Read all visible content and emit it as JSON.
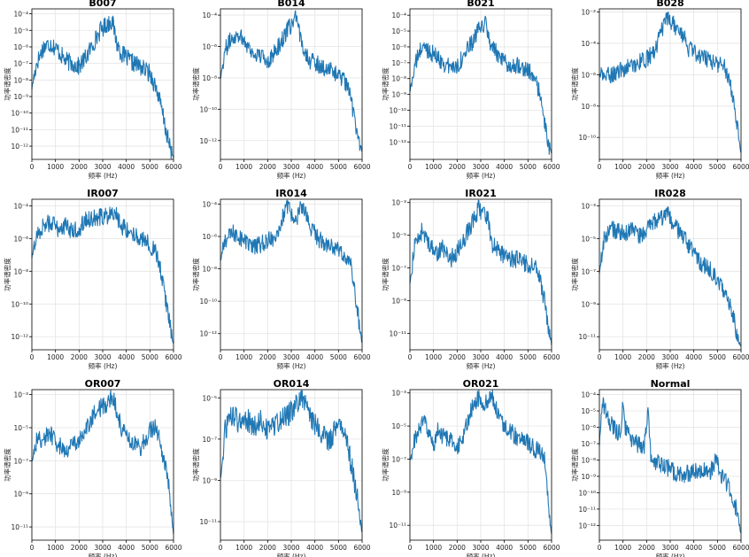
{
  "figure": {
    "xlabel": "频率 (Hz)",
    "ylabel": "功率谱密度",
    "line_color": "#1f77b4"
  },
  "chart_data": [
    {
      "type": "line",
      "title": "B007",
      "xlabel": "频率 (Hz)",
      "ylabel": "功率谱密度",
      "xlim": [
        0,
        6000
      ],
      "y_scale": "log",
      "ylim_exp": [
        -12.8,
        -3.7
      ],
      "x_ticks": [
        0,
        1000,
        2000,
        3000,
        4000,
        5000,
        6000
      ],
      "y_tick_labels": [
        "10⁻⁴",
        "10⁻⁵",
        "10⁻⁶",
        "10⁻⁷",
        "10⁻⁸",
        "10⁻⁹",
        "10⁻¹⁰",
        "10⁻¹¹",
        "10⁻¹²"
      ],
      "y_tick_exps": [
        -4,
        -5,
        -6,
        -7,
        -8,
        -9,
        -10,
        -11,
        -12
      ],
      "grid": true,
      "x": [
        0,
        200,
        500,
        800,
        1100,
        1400,
        1700,
        2000,
        2300,
        2600,
        2900,
        3200,
        3400,
        3600,
        3800,
        4200,
        4600,
        5000,
        5300,
        5500,
        5700,
        5900,
        6000
      ],
      "log10_values": [
        -8.5,
        -7.0,
        -6.0,
        -5.8,
        -6.2,
        -6.8,
        -7.0,
        -7.2,
        -6.6,
        -5.8,
        -5.0,
        -4.6,
        -4.4,
        -5.8,
        -6.4,
        -6.9,
        -7.2,
        -7.6,
        -8.6,
        -9.8,
        -11.2,
        -12.4,
        -12.6
      ]
    },
    {
      "type": "line",
      "title": "B014",
      "xlabel": "频率 (Hz)",
      "ylabel": "功率谱密度",
      "xlim": [
        0,
        6000
      ],
      "y_scale": "log",
      "ylim_exp": [
        -13.2,
        -3.6
      ],
      "x_ticks": [
        0,
        1000,
        2000,
        3000,
        4000,
        5000,
        6000
      ],
      "y_tick_labels": [
        "10⁻⁴",
        "10⁻⁶",
        "10⁻⁸",
        "10⁻¹⁰",
        "10⁻¹²"
      ],
      "y_tick_exps": [
        -4,
        -6,
        -8,
        -10,
        -12
      ],
      "grid": true,
      "x": [
        0,
        200,
        500,
        800,
        1100,
        1400,
        1700,
        2000,
        2300,
        2600,
        2900,
        3200,
        3400,
        3600,
        3800,
        4200,
        4600,
        5000,
        5300,
        5500,
        5700,
        5900,
        6000
      ],
      "log10_values": [
        -8.0,
        -6.2,
        -5.4,
        -5.2,
        -5.8,
        -6.5,
        -6.6,
        -6.9,
        -6.4,
        -5.6,
        -4.8,
        -4.2,
        -5.6,
        -6.3,
        -6.9,
        -7.2,
        -7.5,
        -7.8,
        -8.3,
        -9.2,
        -10.8,
        -12.2,
        -12.6
      ]
    },
    {
      "type": "line",
      "title": "B021",
      "xlabel": "频率 (Hz)",
      "ylabel": "功率谱密度",
      "xlim": [
        0,
        6000
      ],
      "y_scale": "log",
      "ylim_exp": [
        -13.1,
        -3.6
      ],
      "x_ticks": [
        0,
        1000,
        2000,
        3000,
        4000,
        5000,
        6000
      ],
      "y_tick_labels": [
        "10⁻⁴",
        "10⁻⁵",
        "10⁻⁶",
        "10⁻⁷",
        "10⁻⁸",
        "10⁻⁹",
        "10⁻¹⁰",
        "10⁻¹¹",
        "10⁻¹²"
      ],
      "y_tick_exps": [
        -4,
        -5,
        -6,
        -7,
        -8,
        -9,
        -10,
        -11,
        -12
      ],
      "grid": true,
      "x": [
        0,
        200,
        500,
        800,
        1100,
        1400,
        1700,
        2000,
        2300,
        2600,
        2900,
        3200,
        3400,
        3600,
        3800,
        4200,
        4600,
        5000,
        5300,
        5500,
        5700,
        5900,
        6000
      ],
      "log10_values": [
        -8.8,
        -7.2,
        -6.0,
        -6.2,
        -6.6,
        -7.0,
        -7.3,
        -7.2,
        -6.5,
        -5.8,
        -5.0,
        -4.5,
        -5.8,
        -6.2,
        -6.8,
        -7.2,
        -7.1,
        -7.5,
        -8.0,
        -9.0,
        -10.8,
        -12.4,
        -12.7
      ]
    },
    {
      "type": "line",
      "title": "B028",
      "xlabel": "频率 (Hz)",
      "ylabel": "功率谱密度",
      "xlim": [
        0,
        6000
      ],
      "y_scale": "log",
      "ylim_exp": [
        -11.4,
        -1.8
      ],
      "x_ticks": [
        0,
        1000,
        2000,
        3000,
        4000,
        5000,
        6000
      ],
      "y_tick_labels": [
        "10⁻²",
        "10⁻⁴",
        "10⁻⁶",
        "10⁻⁸",
        "10⁻¹⁰"
      ],
      "y_tick_exps": [
        -2,
        -4,
        -6,
        -8,
        -10
      ],
      "grid": true,
      "x": [
        0,
        200,
        500,
        800,
        1100,
        1400,
        1700,
        2000,
        2300,
        2600,
        2800,
        3000,
        3200,
        3400,
        3600,
        3800,
        4200,
        4600,
        5000,
        5300,
        5500,
        5700,
        5900,
        6000
      ],
      "log10_values": [
        -6.0,
        -6.1,
        -6.0,
        -5.8,
        -5.6,
        -5.4,
        -5.2,
        -5.0,
        -4.6,
        -3.4,
        -2.6,
        -2.5,
        -2.9,
        -3.3,
        -3.6,
        -4.4,
        -4.7,
        -5.0,
        -5.3,
        -5.5,
        -6.2,
        -7.8,
        -9.8,
        -11.0
      ]
    },
    {
      "type": "line",
      "title": "IR007",
      "xlabel": "频率 (Hz)",
      "ylabel": "功率谱密度",
      "xlim": [
        0,
        6000
      ],
      "y_scale": "log",
      "ylim_exp": [
        -12.8,
        -3.6
      ],
      "x_ticks": [
        0,
        1000,
        2000,
        3000,
        4000,
        5000,
        6000
      ],
      "y_tick_labels": [
        "10⁻⁴",
        "10⁻⁶",
        "10⁻⁸",
        "10⁻¹⁰",
        "10⁻¹²"
      ],
      "y_tick_exps": [
        -4,
        -6,
        -8,
        -10,
        -12
      ],
      "grid": true,
      "x": [
        0,
        200,
        500,
        800,
        1100,
        1400,
        1700,
        2000,
        2300,
        2600,
        2900,
        3200,
        3400,
        3600,
        3800,
        4200,
        4600,
        5000,
        5300,
        5500,
        5700,
        5900,
        6000
      ],
      "log10_values": [
        -7.2,
        -5.8,
        -5.2,
        -5.0,
        -5.4,
        -5.2,
        -5.6,
        -5.4,
        -4.8,
        -4.8,
        -4.7,
        -4.6,
        -4.2,
        -4.6,
        -5.2,
        -5.6,
        -6.0,
        -6.4,
        -7.0,
        -8.2,
        -10.0,
        -11.8,
        -12.5
      ]
    },
    {
      "type": "line",
      "title": "IR014",
      "xlabel": "频率 (Hz)",
      "ylabel": "功率谱密度",
      "xlim": [
        0,
        6000
      ],
      "y_scale": "log",
      "ylim_exp": [
        -13.0,
        -3.7
      ],
      "x_ticks": [
        0,
        1000,
        2000,
        3000,
        4000,
        5000,
        6000
      ],
      "y_tick_labels": [
        "10⁻⁴",
        "10⁻⁶",
        "10⁻⁸",
        "10⁻¹⁰",
        "10⁻¹²"
      ],
      "y_tick_exps": [
        -4,
        -6,
        -8,
        -10,
        -12
      ],
      "grid": true,
      "x": [
        0,
        200,
        500,
        800,
        1100,
        1400,
        1700,
        2000,
        2300,
        2600,
        2800,
        3000,
        3200,
        3400,
        3600,
        3800,
        4200,
        4600,
        5000,
        5300,
        5500,
        5700,
        5900,
        6000
      ],
      "log10_values": [
        -7.5,
        -6.2,
        -5.8,
        -6.0,
        -6.4,
        -6.7,
        -6.5,
        -6.3,
        -6.0,
        -5.0,
        -4.2,
        -4.6,
        -4.9,
        -4.3,
        -4.5,
        -5.5,
        -6.2,
        -6.5,
        -6.9,
        -7.2,
        -7.6,
        -9.5,
        -11.6,
        -12.6
      ]
    },
    {
      "type": "line",
      "title": "IR021",
      "xlabel": "频率 (Hz)",
      "ylabel": "功率谱密度",
      "xlim": [
        0,
        6000
      ],
      "y_scale": "log",
      "ylim_exp": [
        -12.0,
        -2.8
      ],
      "x_ticks": [
        0,
        1000,
        2000,
        3000,
        4000,
        5000,
        6000
      ],
      "y_tick_labels": [
        "10⁻³",
        "10⁻⁵",
        "10⁻⁷",
        "10⁻⁹",
        "10⁻¹¹"
      ],
      "y_tick_exps": [
        -3,
        -5,
        -7,
        -9,
        -11
      ],
      "grid": true,
      "x": [
        0,
        200,
        500,
        800,
        1100,
        1400,
        1700,
        2000,
        2300,
        2600,
        2900,
        3100,
        3300,
        3500,
        3800,
        4200,
        4600,
        5000,
        5300,
        5500,
        5700,
        5900,
        6000
      ],
      "log10_values": [
        -8.0,
        -5.6,
        -4.8,
        -5.4,
        -6.2,
        -5.8,
        -6.5,
        -6.0,
        -5.2,
        -4.4,
        -3.4,
        -3.6,
        -4.0,
        -5.6,
        -6.0,
        -6.4,
        -6.5,
        -6.8,
        -7.0,
        -7.6,
        -9.0,
        -11.0,
        -11.6
      ]
    },
    {
      "type": "line",
      "title": "IR028",
      "xlabel": "频率 (Hz)",
      "ylabel": "功率谱密度",
      "xlim": [
        0,
        6000
      ],
      "y_scale": "log",
      "ylim_exp": [
        -11.8,
        -2.6
      ],
      "x_ticks": [
        0,
        1000,
        2000,
        3000,
        4000,
        5000,
        6000
      ],
      "y_tick_labels": [
        "10⁻³",
        "10⁻⁵",
        "10⁻⁷",
        "10⁻⁹",
        "10⁻¹¹"
      ],
      "y_tick_exps": [
        -3,
        -5,
        -7,
        -9,
        -11
      ],
      "grid": true,
      "x": [
        0,
        200,
        500,
        800,
        1100,
        1400,
        1700,
        2000,
        2300,
        2600,
        2900,
        3200,
        3400,
        3600,
        3800,
        4200,
        4600,
        5000,
        5300,
        5500,
        5700,
        5900,
        6000
      ],
      "log10_values": [
        -7.2,
        -5.0,
        -4.4,
        -4.6,
        -4.8,
        -4.2,
        -4.9,
        -4.5,
        -4.0,
        -3.8,
        -3.6,
        -4.3,
        -4.6,
        -5.0,
        -5.5,
        -6.4,
        -6.8,
        -7.4,
        -8.2,
        -9.0,
        -10.0,
        -11.2,
        -11.5
      ]
    },
    {
      "type": "line",
      "title": "OR007",
      "xlabel": "频率 (Hz)",
      "ylabel": "功率谱密度",
      "xlim": [
        0,
        6000
      ],
      "y_scale": "log",
      "ylim_exp": [
        -11.8,
        -2.7
      ],
      "x_ticks": [
        0,
        1000,
        2000,
        3000,
        4000,
        5000,
        6000
      ],
      "y_tick_labels": [
        "10⁻³",
        "10⁻⁵",
        "10⁻⁷",
        "10⁻⁹",
        "10⁻¹¹"
      ],
      "y_tick_exps": [
        -3,
        -5,
        -7,
        -9,
        -11
      ],
      "grid": true,
      "x": [
        0,
        200,
        500,
        800,
        1100,
        1400,
        1700,
        2000,
        2300,
        2600,
        2900,
        3200,
        3400,
        3600,
        3800,
        4200,
        4600,
        5000,
        5200,
        5400,
        5600,
        5800,
        5900,
        6000
      ],
      "log10_values": [
        -7.0,
        -5.8,
        -5.6,
        -5.4,
        -6.0,
        -6.4,
        -6.0,
        -5.8,
        -5.2,
        -4.2,
        -3.8,
        -3.5,
        -3.0,
        -4.0,
        -5.0,
        -5.8,
        -6.2,
        -5.2,
        -5.0,
        -5.6,
        -7.0,
        -8.6,
        -10.2,
        -11.4
      ]
    },
    {
      "type": "line",
      "title": "OR014",
      "xlabel": "频率 (Hz)",
      "ylabel": "功率谱密度",
      "xlim": [
        0,
        6000
      ],
      "y_scale": "log",
      "ylim_exp": [
        -11.9,
        -4.6
      ],
      "x_ticks": [
        0,
        1000,
        2000,
        3000,
        4000,
        5000,
        6000
      ],
      "y_tick_labels": [
        "10⁻⁵",
        "10⁻⁷",
        "10⁻⁹",
        "10⁻¹¹"
      ],
      "y_tick_exps": [
        -5,
        -7,
        -9,
        -11
      ],
      "grid": true,
      "x": [
        0,
        200,
        500,
        800,
        1100,
        1400,
        1700,
        2000,
        2300,
        2600,
        2900,
        3200,
        3400,
        3600,
        3800,
        4200,
        4600,
        5000,
        5200,
        5400,
        5600,
        5800,
        5900,
        6000
      ],
      "log10_values": [
        -9.0,
        -6.6,
        -5.8,
        -6.2,
        -6.0,
        -6.4,
        -6.1,
        -6.6,
        -6.4,
        -6.0,
        -5.8,
        -5.3,
        -4.9,
        -5.4,
        -5.9,
        -6.6,
        -7.1,
        -6.2,
        -6.4,
        -7.4,
        -8.6,
        -9.8,
        -10.8,
        -11.5
      ]
    },
    {
      "type": "line",
      "title": "OR021",
      "xlabel": "频率 (Hz)",
      "ylabel": "功率谱密度",
      "xlim": [
        0,
        6000
      ],
      "y_scale": "log",
      "ylim_exp": [
        -11.9,
        -2.8
      ],
      "x_ticks": [
        0,
        1000,
        2000,
        3000,
        4000,
        5000,
        6000
      ],
      "y_tick_labels": [
        "10⁻³",
        "10⁻⁵",
        "10⁻⁷",
        "10⁻⁹",
        "10⁻¹¹"
      ],
      "y_tick_exps": [
        -3,
        -5,
        -7,
        -9,
        -11
      ],
      "grid": true,
      "x": [
        0,
        200,
        400,
        600,
        800,
        1000,
        1200,
        1500,
        1800,
        2100,
        2400,
        2700,
        2900,
        3100,
        3300,
        3500,
        3800,
        4200,
        4600,
        5000,
        5300,
        5500,
        5700,
        5900,
        6000
      ],
      "log10_values": [
        -7.2,
        -5.8,
        -5.2,
        -4.6,
        -5.6,
        -6.2,
        -5.2,
        -5.8,
        -6.0,
        -6.2,
        -5.0,
        -3.6,
        -3.3,
        -3.8,
        -3.5,
        -3.2,
        -4.6,
        -5.2,
        -5.8,
        -6.0,
        -6.4,
        -6.6,
        -6.8,
        -10.5,
        -11.6
      ]
    },
    {
      "type": "line",
      "title": "Normal",
      "xlabel": "频率 (Hz)",
      "ylabel": "功率谱密度",
      "xlim": [
        0,
        6000
      ],
      "y_scale": "log",
      "ylim_exp": [
        -12.9,
        -3.7
      ],
      "x_ticks": [
        0,
        1000,
        2000,
        3000,
        4000,
        5000,
        6000
      ],
      "y_tick_labels": [
        "10⁻⁴",
        "10⁻⁵",
        "10⁻⁶",
        "10⁻⁷",
        "10⁻⁸",
        "10⁻⁹",
        "10⁻¹⁰",
        "10⁻¹¹",
        "10⁻¹²"
      ],
      "y_tick_exps": [
        -4,
        -5,
        -6,
        -7,
        -8,
        -9,
        -10,
        -11,
        -12
      ],
      "grid": true,
      "x": [
        0,
        150,
        300,
        500,
        700,
        900,
        1000,
        1100,
        1300,
        1600,
        1900,
        2050,
        2200,
        2500,
        2900,
        3300,
        3600,
        3900,
        4300,
        4700,
        4950,
        5100,
        5300,
        5600,
        5900,
        6000
      ],
      "log10_values": [
        -7.0,
        -4.5,
        -5.2,
        -5.8,
        -6.2,
        -6.4,
        -4.3,
        -6.0,
        -6.8,
        -7.0,
        -7.2,
        -5.0,
        -8.0,
        -8.2,
        -8.5,
        -8.8,
        -8.9,
        -8.7,
        -8.6,
        -8.8,
        -7.8,
        -8.8,
        -9.2,
        -10.0,
        -11.6,
        -12.5
      ]
    }
  ]
}
